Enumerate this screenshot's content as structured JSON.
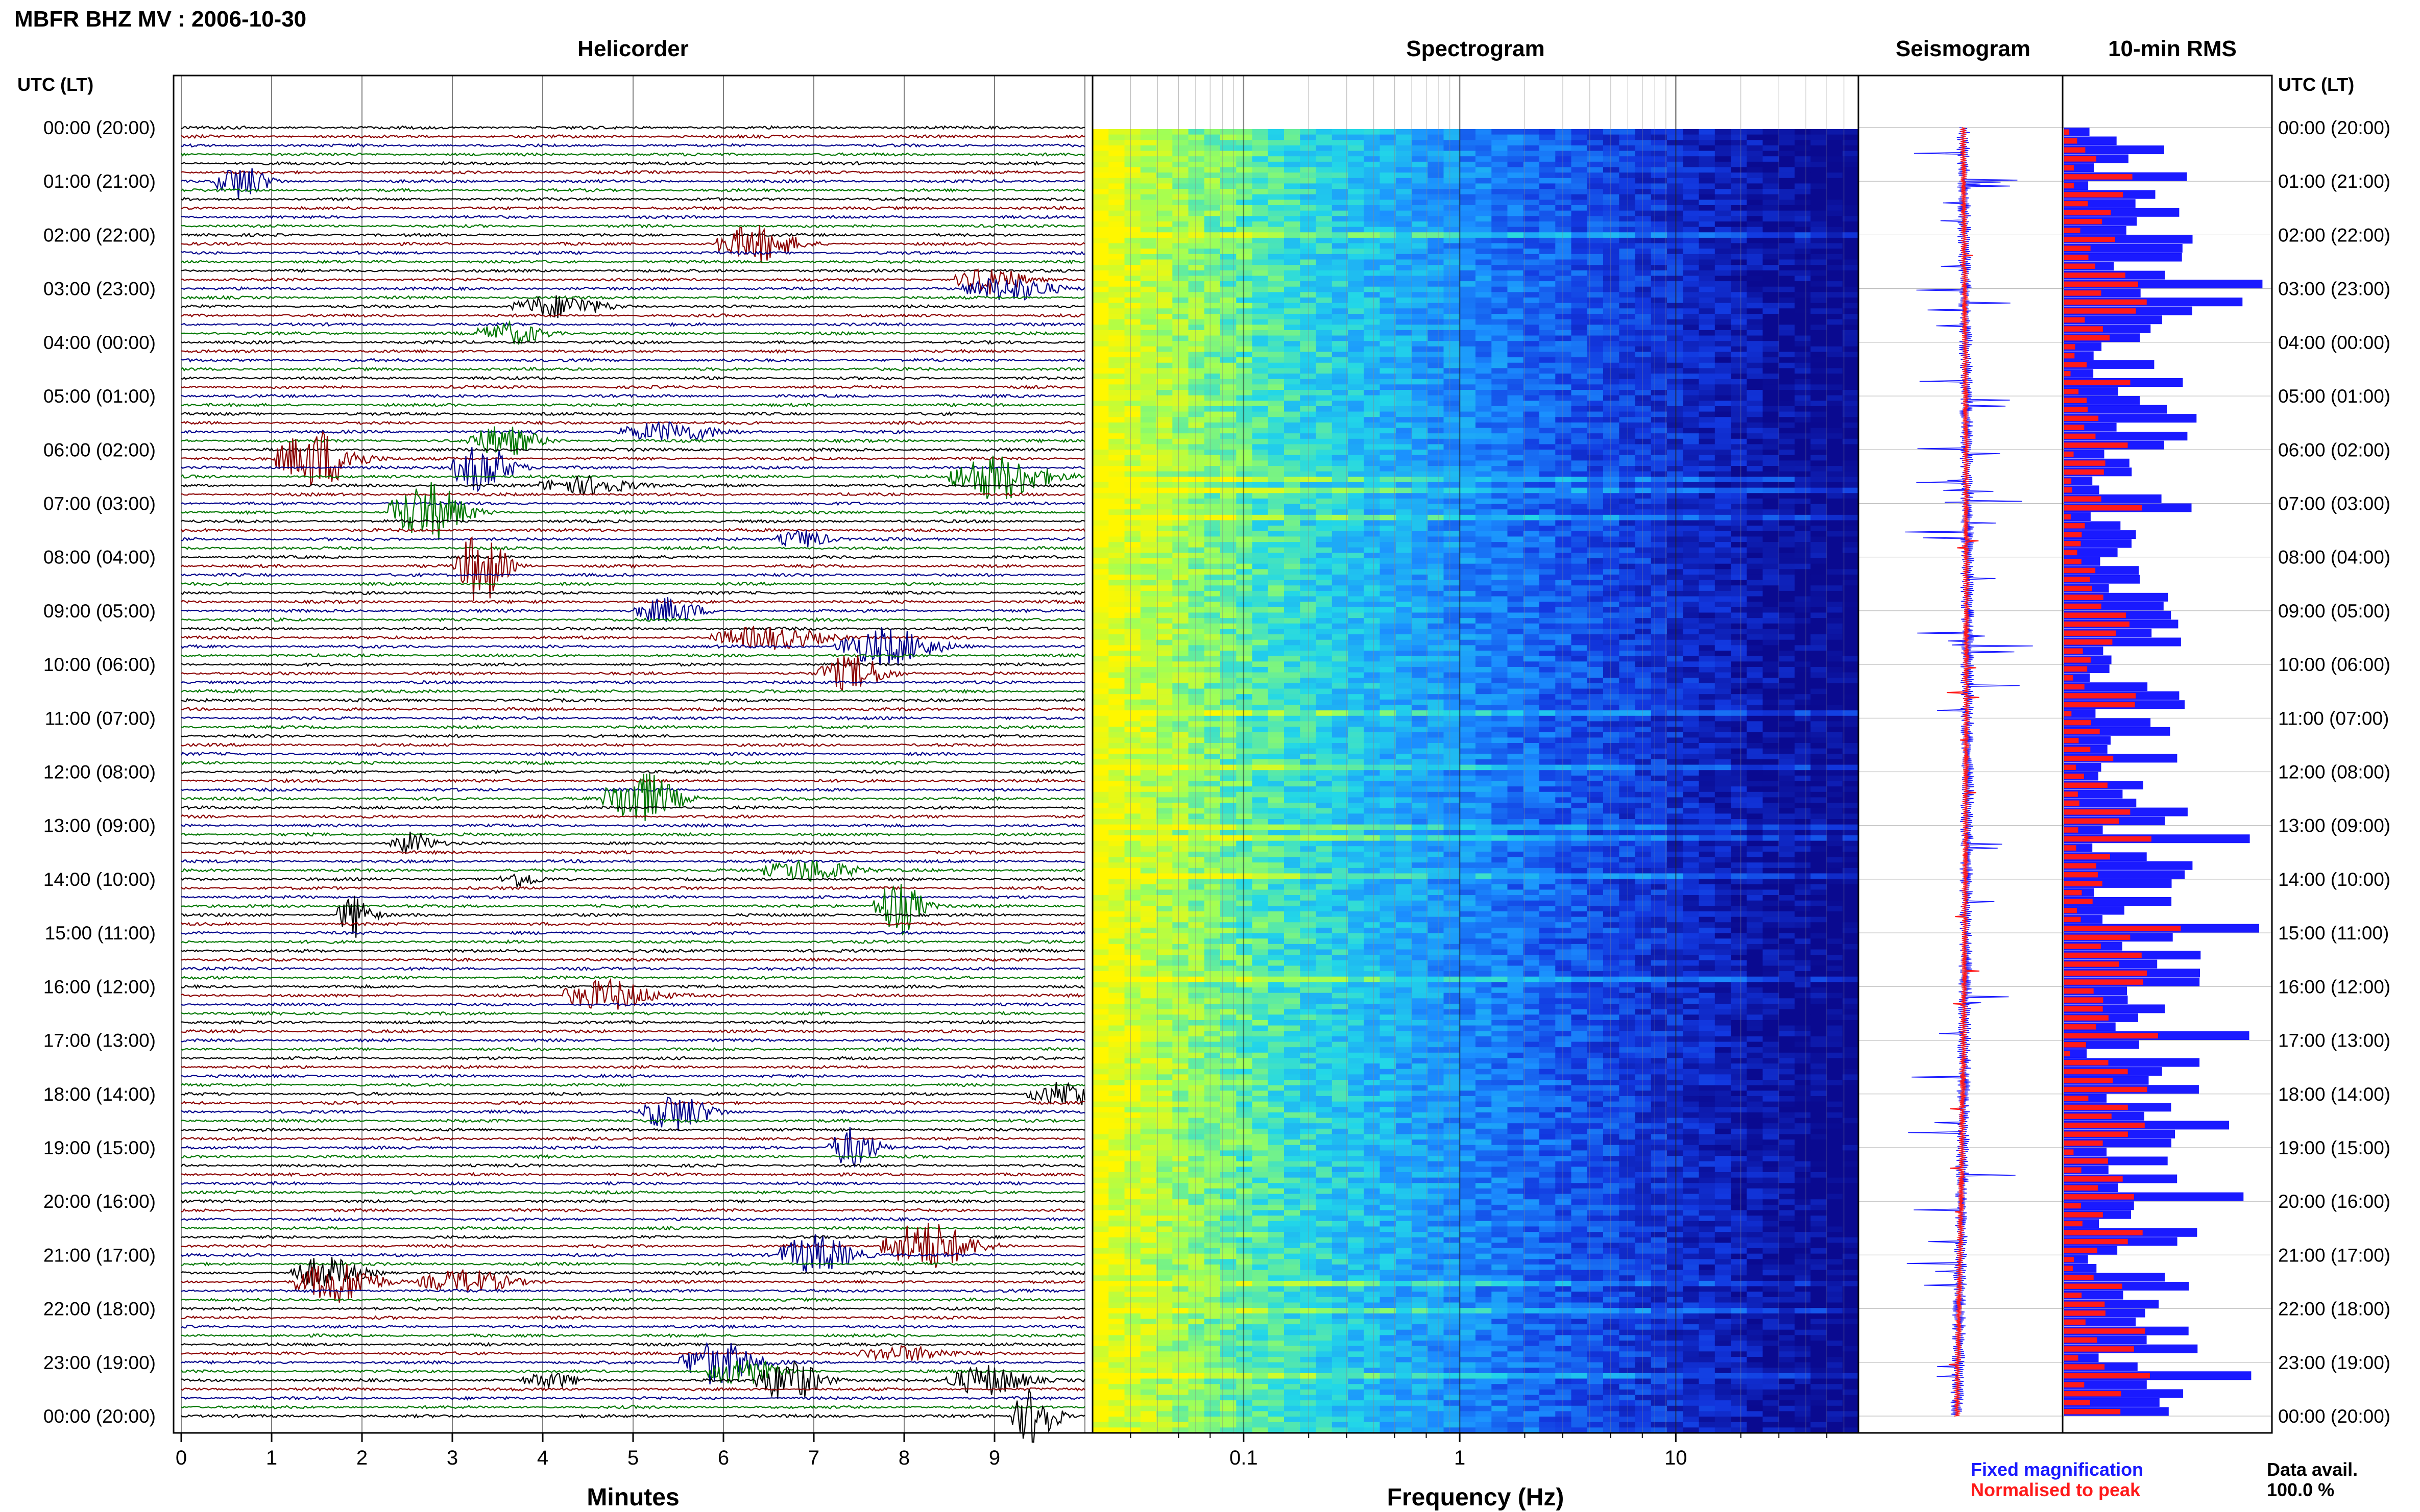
{
  "header": {
    "title": "MBFR BHZ MV : 2006-10-30",
    "utc_label_left": "UTC (LT)",
    "utc_label_right": "UTC (LT)"
  },
  "panels": {
    "helicorder": "Helicorder",
    "spectrogram": "Spectrogram",
    "seismogram": "Seismogram",
    "rms": "10-min RMS"
  },
  "legend": {
    "fixed": "Fixed magnification",
    "normalised": "Normalised to peak",
    "data_avail_label": "Data avail.",
    "data_avail_value": "100.0 %",
    "fixed_color": "#1a1aff",
    "normalised_color": "#ff1a1a"
  },
  "chart_data": [
    {
      "type": "line",
      "name": "helicorder",
      "title": "Helicorder",
      "xlabel": "Minutes",
      "ylabel": "",
      "xlim": [
        0,
        10
      ],
      "x_ticks": [
        "0",
        "1",
        "2",
        "3",
        "4",
        "5",
        "6",
        "7",
        "8",
        "9"
      ],
      "y_tick_labels": [
        "00:00 (20:00)",
        "01:00 (21:00)",
        "02:00 (22:00)",
        "03:00 (23:00)",
        "04:00 (00:00)",
        "05:00 (01:00)",
        "06:00 (02:00)",
        "07:00 (03:00)",
        "08:00 (04:00)",
        "09:00 (05:00)",
        "10:00 (06:00)",
        "11:00 (07:00)",
        "12:00 (08:00)",
        "13:00 (09:00)",
        "14:00 (10:00)",
        "15:00 (11:00)",
        "16:00 (12:00)",
        "17:00 (13:00)",
        "18:00 (14:00)",
        "19:00 (15:00)",
        "20:00 (16:00)",
        "21:00 (17:00)",
        "22:00 (18:00)",
        "23:00 (19:00)",
        "00:00 (20:00)"
      ],
      "trace_colors": [
        "#000000",
        "#8b0000",
        "#00008b",
        "#007700"
      ],
      "grid": true
    },
    {
      "type": "heatmap",
      "name": "spectrogram",
      "title": "Spectrogram",
      "xlabel": "Frequency (Hz)",
      "x_scale": "log",
      "x_tick_labels": [
        "0.1",
        "1",
        "10"
      ],
      "colormap": [
        "#fff700",
        "#9cff5a",
        "#22d7e8",
        "#1b8fff",
        "#1238e0",
        "#0a0a90"
      ]
    },
    {
      "type": "line",
      "name": "seismogram",
      "title": "Seismogram",
      "series": [
        {
          "name": "Fixed magnification",
          "color": "#1a1aff"
        },
        {
          "name": "Normalised to peak",
          "color": "#ff1a1a"
        }
      ]
    },
    {
      "type": "bar",
      "name": "rms",
      "title": "10-min RMS",
      "orientation": "horizontal",
      "series": [
        {
          "name": "Fixed magnification",
          "color": "#1a1aff"
        },
        {
          "name": "Normalised to peak",
          "color": "#ff1a1a"
        }
      ]
    }
  ]
}
